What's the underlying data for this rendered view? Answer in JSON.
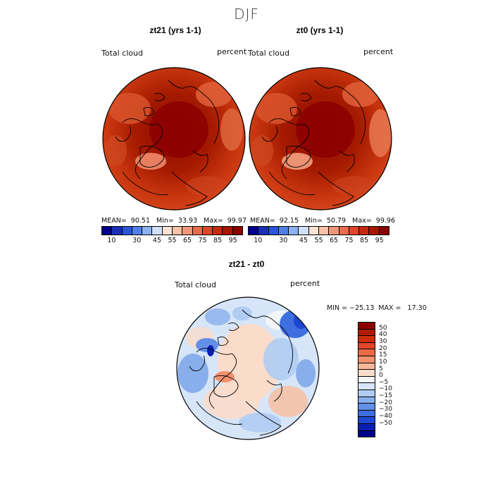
{
  "season": "DJF",
  "panels": [
    {
      "title": "zt21 (yrs 1-1)",
      "variable": "Total cloud",
      "units": "percent",
      "stats": "MEAN=  90.51   Min=  33.93   Max=  99.97"
    },
    {
      "title": "zt0 (yrs 1-1)",
      "variable": "Total cloud",
      "units": "percent",
      "stats": "MEAN=  92.15   Min=  50.79   Max=  99.96"
    }
  ],
  "absolute_colorbar": {
    "colors": [
      "#00008b",
      "#1a2fb8",
      "#2b55d9",
      "#4f7fe8",
      "#8db0f0",
      "#cfe0f8",
      "#fbe2d4",
      "#f6c1a6",
      "#f1967a",
      "#ea6c4d",
      "#e2452a",
      "#c52a10",
      "#a81500",
      "#8b0000"
    ],
    "tick_labels": [
      "10",
      "30",
      "45",
      "55",
      "65",
      "75",
      "85",
      "95"
    ]
  },
  "diff_panel": {
    "title": "zt21 - zt0",
    "variable": "Total cloud",
    "units": "percent",
    "stats": "MIN = −25.13  MAX =   17.30"
  },
  "diff_colorbar": {
    "colors": [
      "#8b0000",
      "#b21a00",
      "#cf2c0a",
      "#e2452a",
      "#ec6a45",
      "#f2916e",
      "#f6b799",
      "#fbdccb",
      "#f5f5f5",
      "#d6e5f8",
      "#b0ccf3",
      "#88afec",
      "#6390e6",
      "#3e6ee0",
      "#1f47d3",
      "#0a1fb0",
      "#00008b"
    ],
    "tick_labels": [
      "50",
      "40",
      "30",
      "20",
      "15",
      "10",
      "5",
      "0",
      "−5",
      "−10",
      "−15",
      "−20",
      "−30",
      "−40",
      "−50"
    ]
  }
}
